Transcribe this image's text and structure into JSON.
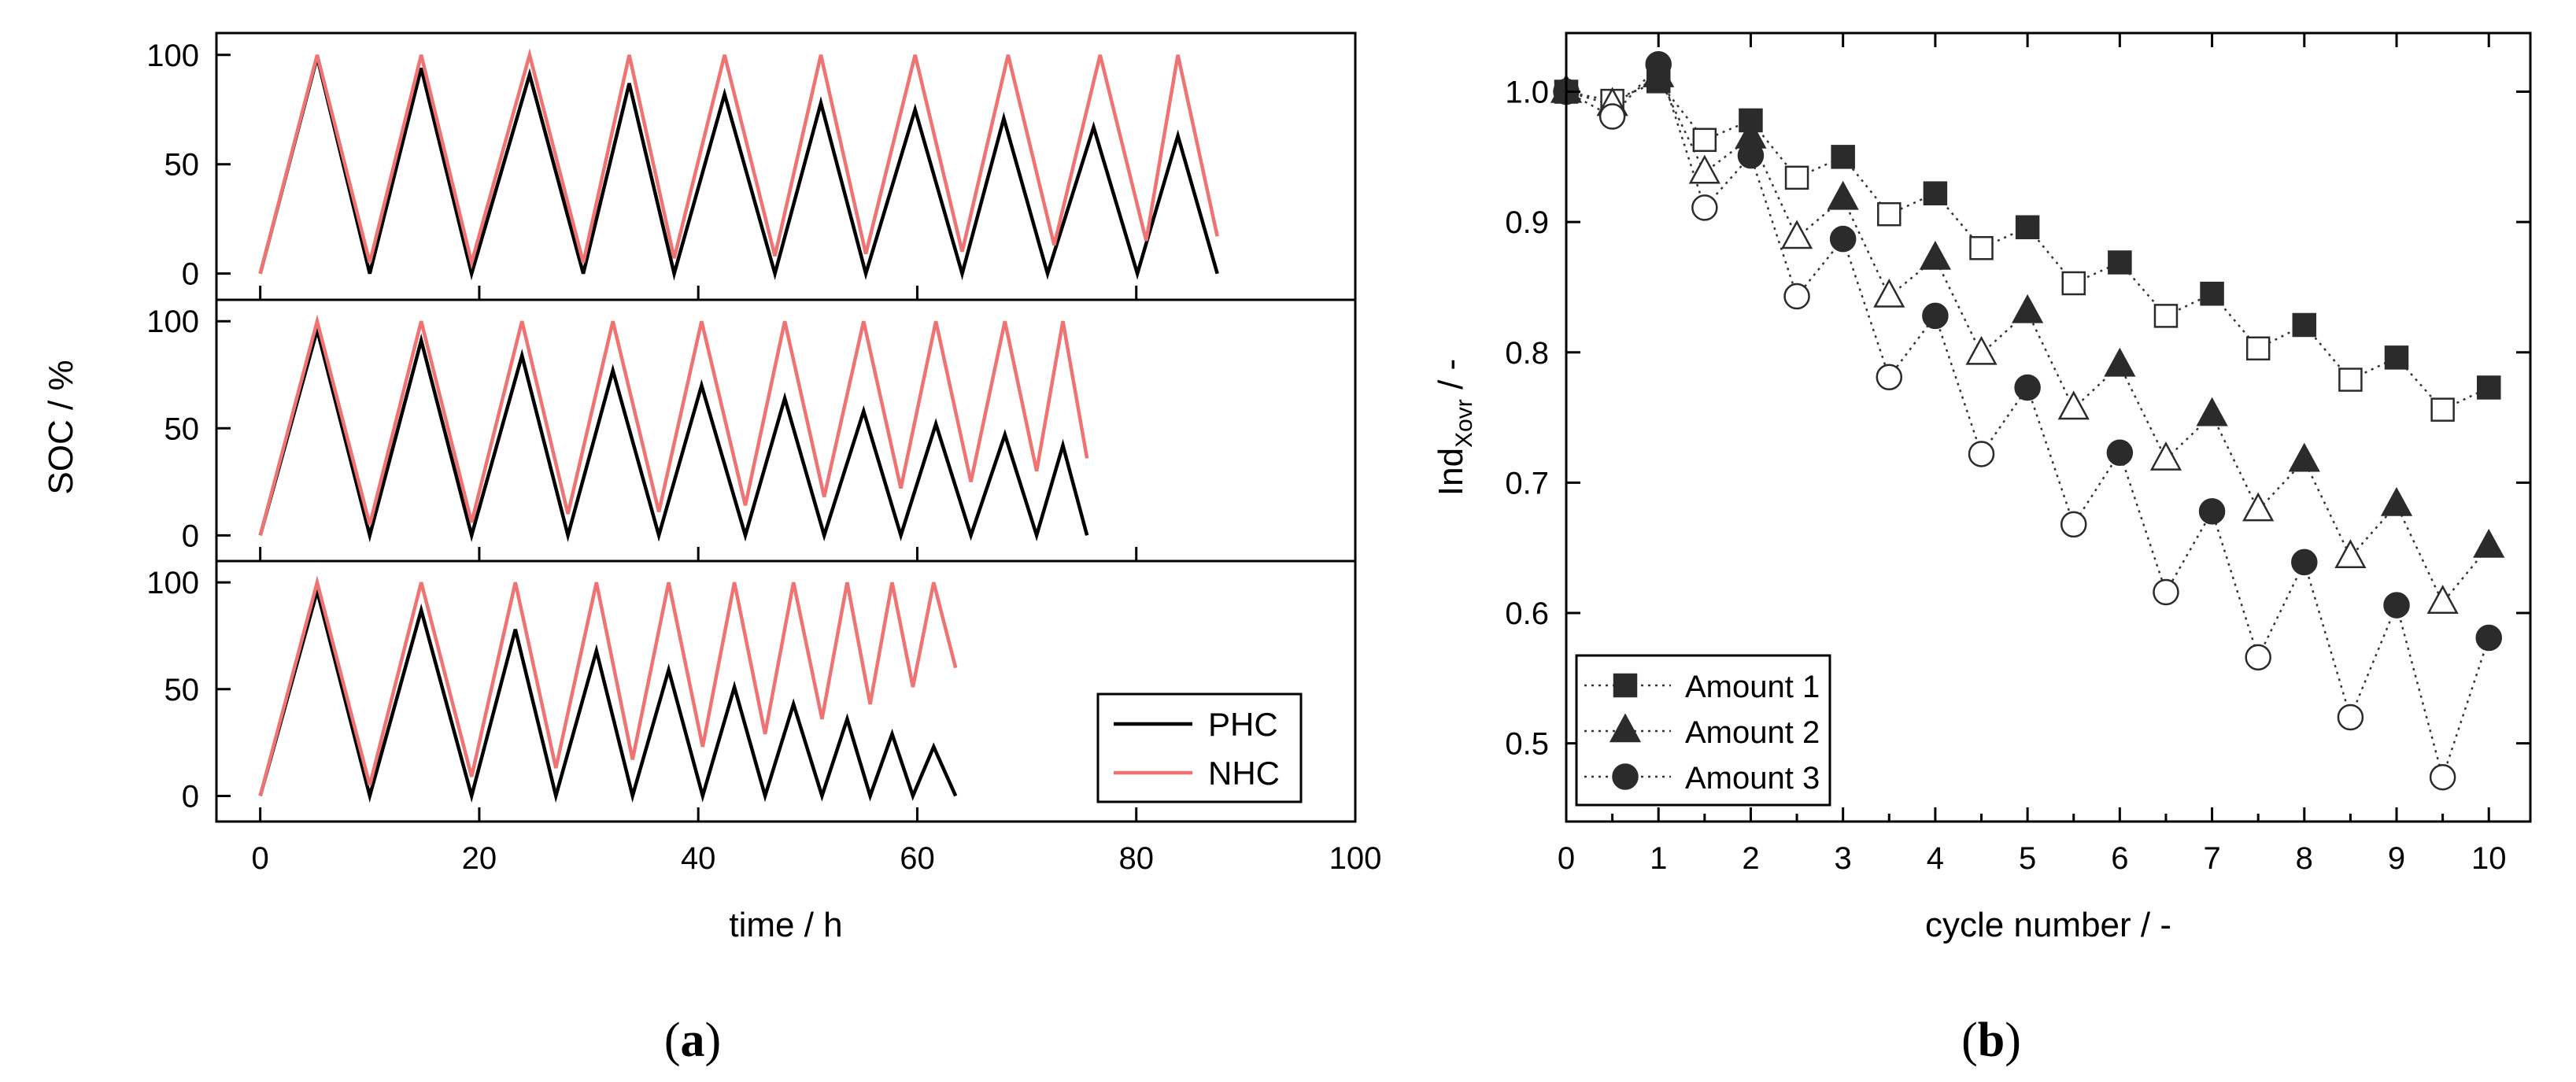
{
  "chart_data": [
    {
      "type": "line",
      "panel_label": "a",
      "xlabel": "time / h",
      "ylabel": "SOC / %",
      "xlim": [
        -4,
        100
      ],
      "x_ticks": [
        0,
        20,
        40,
        60,
        80,
        100
      ],
      "ylim": [
        -12,
        110
      ],
      "y_ticks": [
        0,
        50,
        100
      ],
      "legend": {
        "placement": "bottom-right of bottom subplot",
        "entries": [
          {
            "name": "PHC",
            "color": "#000000"
          },
          {
            "name": "NHC",
            "color": "#f07373"
          }
        ]
      },
      "subplots": [
        {
          "series": [
            {
              "name": "PHC",
              "color": "#000000",
              "x": [
                0,
                5.2,
                10,
                14.7,
                19.3,
                24.6,
                29.5,
                33.7,
                37.8,
                42.4,
                47,
                51.2,
                55.3,
                59.8,
                64.1,
                67.9,
                71.9,
                76.1,
                80.1,
                83.8,
                87.4
              ],
              "y": [
                0,
                99,
                0,
                94,
                0,
                91,
                0,
                87,
                0,
                82,
                0,
                78,
                0,
                75,
                0,
                71,
                0,
                67,
                0,
                63,
                0
              ]
            },
            {
              "name": "NHC",
              "color": "#f07373",
              "x": [
                0,
                5.2,
                10,
                14.7,
                19.3,
                24.6,
                29.5,
                33.7,
                37.8,
                42.4,
                47,
                51.2,
                55.3,
                59.8,
                64.1,
                68.3,
                72.5,
                76.7,
                80.9,
                83.8,
                87.4
              ],
              "y": [
                0,
                100,
                5,
                100,
                5,
                100,
                5,
                100,
                7,
                100,
                8,
                100,
                9,
                100,
                10,
                100,
                13,
                100,
                15,
                100,
                17
              ]
            }
          ]
        },
        {
          "series": [
            {
              "name": "PHC",
              "color": "#000000",
              "x": [
                0,
                5.2,
                10,
                14.7,
                19.3,
                23.9,
                28.1,
                32.2,
                36.4,
                40.3,
                44.3,
                47.9,
                51.5,
                55.1,
                58.5,
                61.7,
                64.9,
                68,
                70.9,
                73.3,
                75.5
              ],
              "y": [
                0,
                96,
                0,
                91,
                0,
                84,
                0,
                77,
                0,
                70,
                0,
                64,
                0,
                58,
                0,
                52,
                0,
                47,
                0,
                42,
                0
              ]
            },
            {
              "name": "NHC",
              "color": "#f07373",
              "x": [
                0,
                5.2,
                10,
                14.7,
                19.3,
                23.9,
                28.1,
                32.2,
                36.4,
                40.3,
                44.3,
                47.9,
                51.5,
                55.1,
                58.5,
                61.7,
                64.9,
                68,
                70.9,
                73.3,
                75.5
              ],
              "y": [
                0,
                100,
                5,
                100,
                6,
                100,
                10,
                100,
                11,
                100,
                14,
                100,
                18,
                100,
                22,
                100,
                25,
                100,
                30,
                100,
                36
              ]
            }
          ]
        },
        {
          "series": [
            {
              "name": "PHC",
              "color": "#000000",
              "x": [
                0,
                5.2,
                10,
                14.7,
                19.3,
                23.3,
                27,
                30.7,
                34,
                37.3,
                40.4,
                43.3,
                46.1,
                48.7,
                51.3,
                53.6,
                55.7,
                57.7,
                59.6,
                61.5,
                63.5
              ],
              "y": [
                0,
                96,
                0,
                87,
                0,
                78,
                0,
                68,
                0,
                59,
                0,
                51,
                0,
                43,
                0,
                36,
                0,
                29,
                0,
                23,
                0
              ]
            },
            {
              "name": "NHC",
              "color": "#f07373",
              "x": [
                0,
                5.2,
                10,
                14.7,
                19.3,
                23.3,
                27,
                30.7,
                34,
                37.3,
                40.4,
                43.3,
                46.1,
                48.7,
                51.3,
                53.6,
                55.7,
                57.7,
                59.6,
                61.5,
                63.5
              ],
              "y": [
                0,
                100,
                5,
                100,
                9,
                100,
                13,
                100,
                17,
                100,
                23,
                100,
                29,
                100,
                36,
                100,
                43,
                100,
                51,
                100,
                60
              ]
            }
          ]
        }
      ]
    },
    {
      "type": "scatter",
      "panel_label": "b",
      "xlabel": "cycle number / -",
      "ylabel_main": "Ind",
      "ylabel_sub": "Xovr",
      "ylabel_unit": " / -",
      "xlim": [
        0,
        10.45
      ],
      "x_ticks": [
        0,
        1,
        2,
        3,
        4,
        5,
        6,
        7,
        8,
        9,
        10
      ],
      "ylim": [
        0.44,
        1.045
      ],
      "y_ticks": [
        0.5,
        0.6,
        0.7,
        0.8,
        0.9,
        1.0
      ],
      "y_tick_labels": [
        "0.5",
        "0.6",
        "0.7",
        "0.8",
        "0.9",
        "1.0"
      ],
      "legend": {
        "placement": "bottom-left"
      },
      "series": [
        {
          "name": "Amount 1",
          "marker": "square",
          "x": [
            0,
            0.5,
            1,
            1.5,
            2,
            2.5,
            3,
            3.5,
            4,
            4.5,
            5,
            5.5,
            6,
            6.5,
            7,
            7.5,
            8,
            8.5,
            9,
            9.5,
            10
          ],
          "y": [
            1.0,
            0.993,
            1.008,
            0.963,
            0.978,
            0.934,
            0.95,
            0.906,
            0.922,
            0.88,
            0.896,
            0.853,
            0.869,
            0.828,
            0.845,
            0.803,
            0.821,
            0.779,
            0.796,
            0.756,
            0.773
          ]
        },
        {
          "name": "Amount 2",
          "marker": "triangle",
          "x": [
            0,
            0.5,
            1,
            1.5,
            2,
            2.5,
            3,
            3.5,
            4,
            4.5,
            5,
            5.5,
            6,
            6.5,
            7,
            7.5,
            8,
            8.5,
            9,
            9.5,
            10
          ],
          "y": [
            1.0,
            0.99,
            1.012,
            0.938,
            0.965,
            0.888,
            0.918,
            0.843,
            0.872,
            0.799,
            0.831,
            0.757,
            0.79,
            0.718,
            0.752,
            0.679,
            0.717,
            0.643,
            0.683,
            0.608,
            0.651
          ]
        },
        {
          "name": "Amount 3",
          "marker": "circle",
          "x": [
            0,
            0.5,
            1,
            1.5,
            2,
            2.5,
            3,
            3.5,
            4,
            4.5,
            5,
            5.5,
            6,
            6.5,
            7,
            7.5,
            8,
            8.5,
            9,
            9.5,
            10
          ],
          "y": [
            1.0,
            0.981,
            1.021,
            0.911,
            0.951,
            0.843,
            0.887,
            0.781,
            0.828,
            0.722,
            0.773,
            0.668,
            0.723,
            0.616,
            0.678,
            0.566,
            0.639,
            0.52,
            0.606,
            0.474,
            0.581
          ]
        }
      ]
    }
  ],
  "captions": {
    "a": "(a)",
    "b": "(b)"
  }
}
